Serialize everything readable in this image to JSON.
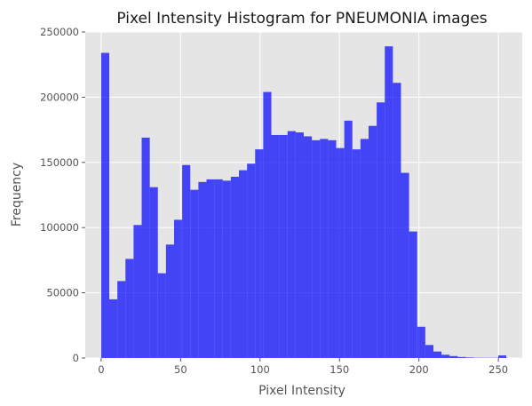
{
  "chart_data": {
    "type": "bar",
    "title": "Pixel Intensity Histogram for PNEUMONIA images",
    "xlabel": "Pixel Intensity",
    "ylabel": "Frequency",
    "xlim": [
      -10,
      265
    ],
    "ylim": [
      0,
      250000
    ],
    "x_ticks": [
      "0",
      "50",
      "100",
      "150",
      "200",
      "250"
    ],
    "y_ticks": [
      "0",
      "50000",
      "100000",
      "150000",
      "200000",
      "250000"
    ],
    "grid": true,
    "bar_color": "#0000ff",
    "bin_edges": [
      0,
      5.1,
      10.2,
      15.3,
      20.4,
      25.5,
      30.6,
      35.7,
      40.8,
      45.9,
      51.0,
      56.1,
      61.2,
      66.3,
      71.4,
      76.5,
      81.6,
      86.7,
      91.8,
      96.9,
      102.0,
      107.1,
      112.2,
      117.3,
      122.4,
      127.5,
      132.6,
      137.7,
      142.8,
      147.9,
      153.0,
      158.1,
      163.2,
      168.3,
      173.4,
      178.5,
      183.6,
      188.7,
      193.8,
      198.9,
      204.0,
      209.1,
      214.2,
      219.3,
      224.4,
      229.5,
      234.6,
      239.7,
      244.8,
      249.9,
      255.0
    ],
    "values": [
      234000,
      45000,
      59000,
      76000,
      102000,
      169000,
      131000,
      65000,
      87000,
      106000,
      148000,
      129000,
      135000,
      137000,
      137000,
      136000,
      139000,
      144000,
      149000,
      160000,
      204000,
      171000,
      171000,
      174000,
      173000,
      170000,
      167000,
      168000,
      167000,
      161000,
      182000,
      160000,
      168000,
      178000,
      196000,
      239000,
      211000,
      142000,
      97000,
      24000,
      10000,
      5000,
      2500,
      1500,
      800,
      400,
      200,
      200,
      200,
      2000
    ]
  }
}
